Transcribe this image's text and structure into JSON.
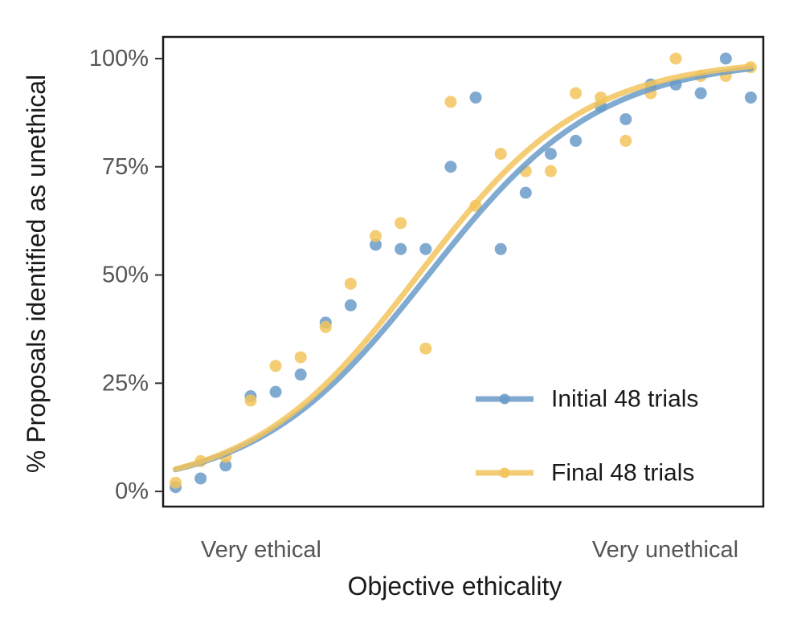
{
  "chart_data": {
    "type": "scatter",
    "title": "",
    "xlabel": "Objective ethicality",
    "ylabel": "% Proposals identified as unethical",
    "x_tick_labels": [
      "Very ethical",
      "Very unethical"
    ],
    "y_ticks": [
      0,
      25,
      50,
      75,
      100
    ],
    "y_tick_labels": [
      "0%",
      "25%",
      "50%",
      "75%",
      "100%"
    ],
    "xlim": [
      0.5,
      24.5
    ],
    "ylim": [
      -3.5,
      105
    ],
    "legend_position": "bottom-right",
    "series": [
      {
        "name": "Initial 48 trials",
        "color": "#6a9bc8",
        "x": [
          1,
          2,
          3,
          4,
          5,
          6,
          7,
          8,
          9,
          10,
          11,
          12,
          13,
          14,
          15,
          16,
          17,
          18,
          19,
          20,
          21,
          22,
          23,
          24
        ],
        "values": [
          1,
          3,
          6,
          22,
          23,
          27,
          39,
          43,
          57,
          56,
          56,
          75,
          91,
          56,
          69,
          78,
          81,
          89,
          86,
          94,
          94,
          92,
          100,
          91
        ],
        "fit": {
          "midpoint": 11.1,
          "slope": 0.29
        }
      },
      {
        "name": "Final 48 trials",
        "color": "#f2c45c",
        "x": [
          1,
          2,
          3,
          4,
          5,
          6,
          7,
          8,
          9,
          10,
          11,
          12,
          13,
          14,
          15,
          16,
          17,
          18,
          19,
          20,
          21,
          22,
          23,
          24
        ],
        "values": [
          2,
          7,
          8,
          21,
          29,
          31,
          38,
          48,
          59,
          62,
          33,
          90,
          66,
          78,
          74,
          74,
          92,
          91,
          81,
          92,
          100,
          96,
          96,
          98
        ],
        "fit": {
          "midpoint": 10.7,
          "slope": 0.3
        }
      }
    ]
  }
}
